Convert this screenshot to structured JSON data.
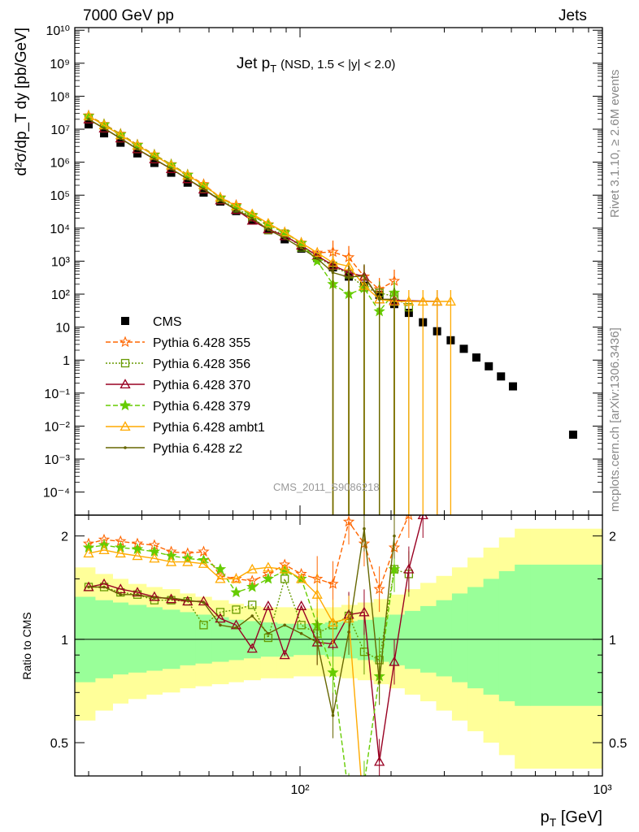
{
  "header": {
    "left": "7000 GeV pp",
    "right": "Jets",
    "rivet": "Rivet 3.1.10, ≥ 2.6M events",
    "mcplots": "mcplots.cern.ch [arXiv:1306.3436]"
  },
  "chart_data": [
    {
      "type": "scatter",
      "title_main": "Jet p",
      "title_sub": "T",
      "title_cut": "(NSD, 1.5 < |y| < 2.0)",
      "analysis_id": "CMS_2011_S9086218",
      "ylabel": "d²σ/dp_T dy [pb/GeV]",
      "xscale": "log",
      "yscale": "log",
      "xlim": [
        18,
        1000
      ],
      "ylim": [
        2e-05,
        12000000000
      ],
      "y_tick_labels": [
        "10⁻⁴",
        "10⁻³",
        "10⁻²",
        "10⁻¹",
        "1",
        "10",
        "10²",
        "10³",
        "10⁴",
        "10⁵",
        "10⁶",
        "10⁷",
        "10⁸",
        "10⁹",
        "10¹⁰"
      ],
      "legend_position": "middle-left",
      "series": [
        {
          "name": "CMS",
          "color": "#000000",
          "marker": "square",
          "x": [
            20,
            22.5,
            25.5,
            29,
            33,
            37.5,
            42.5,
            48,
            54.5,
            61.5,
            69.5,
            78.5,
            89,
            101,
            114,
            128.5,
            145,
            163,
            183,
            205,
            229,
            255,
            284,
            315,
            348,
            383,
            421,
            462,
            506,
            800
          ],
          "y": [
            14000000,
            7500000,
            3900000,
            1850000,
            950000,
            480000,
            240000,
            120000,
            64000,
            33000,
            17000,
            8700,
            4600,
            2400,
            1250,
            650,
            340,
            180,
            95,
            50,
            27,
            14,
            7.5,
            4,
            2.2,
            1.2,
            0.65,
            0.32,
            0.16,
            0.0055
          ]
        },
        {
          "name": "Pythia 6.428 355",
          "color": "#ff6600",
          "marker": "star",
          "dash": "dashed",
          "x": [
            20,
            22.5,
            25.5,
            29,
            33,
            37.5,
            42.5,
            48,
            54.5,
            61.5,
            69.5,
            78.5,
            89,
            101,
            114,
            128.5,
            145,
            163,
            183,
            205
          ],
          "y": [
            26000000,
            14200000,
            7200000,
            3400000,
            1700000,
            860000,
            420000,
            215000,
            85000,
            50000,
            25000,
            13000,
            7500,
            3600,
            1800,
            1900,
            1300,
            340,
            140,
            250
          ]
        },
        {
          "name": "Pythia 6.428 356",
          "color": "#669900",
          "marker": "open-square",
          "dash": "dotted",
          "x": [
            20,
            22.5,
            25.5,
            29,
            33,
            37.5,
            42.5,
            48,
            54.5,
            61.5,
            69.5,
            78.5,
            89,
            101,
            114,
            128.5,
            145,
            163,
            183,
            205,
            229
          ],
          "y": [
            20000000,
            10600000,
            5300000,
            2500000,
            1230000,
            625000,
            310000,
            155000,
            72000,
            40000,
            21500,
            8800,
            6800,
            2600,
            1300,
            720,
            400,
            160,
            110,
            85,
            40
          ]
        },
        {
          "name": "Pythia 6.428 370",
          "color": "#990022",
          "marker": "open-triangle",
          "dash": "solid",
          "x": [
            20,
            22.5,
            25.5,
            29,
            33,
            37.5,
            42.5,
            48,
            54.5,
            61.5,
            69.5,
            78.5,
            89,
            101,
            114,
            128.5,
            145,
            163,
            183,
            205,
            284
          ],
          "y": [
            20000000,
            10600000,
            5300000,
            2500000,
            1230000,
            625000,
            310000,
            150000,
            70000,
            36000,
            17000,
            9300,
            5800,
            3000,
            1450,
            750,
            450,
            340,
            70,
            65,
            60
          ]
        },
        {
          "name": "Pythia 6.428 379",
          "color": "#66cc00",
          "marker": "star",
          "dash": "dashed",
          "x": [
            20,
            22.5,
            25.5,
            29,
            33,
            37.5,
            42.5,
            48,
            54.5,
            61.5,
            69.5,
            78.5,
            89,
            101,
            114,
            128.5,
            145,
            163,
            183,
            205
          ],
          "y": [
            25000000,
            13800000,
            6900000,
            3300000,
            1650000,
            840000,
            410000,
            200000,
            82000,
            46000,
            24000,
            12500,
            7300,
            3500,
            1000,
            200,
            100,
            150,
            30,
            110
          ]
        },
        {
          "name": "Pythia 6.428 ambt1",
          "color": "#ffaa00",
          "marker": "open-triangle",
          "dash": "solid",
          "x": [
            20,
            22.5,
            25.5,
            29,
            33,
            37.5,
            42.5,
            48,
            54.5,
            61.5,
            69.5,
            78.5,
            89,
            101,
            114,
            128.5,
            145,
            163,
            183,
            205,
            229,
            255,
            284,
            315
          ],
          "y": [
            25000000,
            13200000,
            6600000,
            3200000,
            1600000,
            800000,
            400000,
            205000,
            85000,
            47000,
            27000,
            14000,
            7500,
            3600,
            1800,
            900,
            700,
            180,
            70,
            60,
            60,
            60,
            60,
            60
          ]
        },
        {
          "name": "Pythia 6.428 z2",
          "color": "#666600",
          "marker": "dot",
          "dash": "solid",
          "x": [
            20,
            22.5,
            25.5,
            29,
            33,
            37.5,
            42.5,
            48,
            54.5,
            61.5,
            69.5,
            78.5,
            89,
            101,
            114,
            128.5,
            145,
            163,
            183,
            205
          ],
          "y": [
            20000000,
            10600000,
            5200000,
            2500000,
            1250000,
            630000,
            310000,
            155000,
            70000,
            36000,
            20000,
            9000,
            5000,
            2500,
            1200,
            450,
            330,
            360,
            70,
            70
          ]
        }
      ]
    },
    {
      "type": "line",
      "ylabel": "Ratio to CMS",
      "xlabel_main": "p",
      "xlabel_sub": "T",
      "xlabel_unit": "[GeV]",
      "xscale": "log",
      "yscale": "log",
      "xlim": [
        18,
        1000
      ],
      "ylim": [
        0.4,
        2.3
      ],
      "y_tick_labels": [
        "0.5",
        "1",
        "2"
      ],
      "x_tick_labels": [
        "10²",
        "10³"
      ],
      "uncertainty_bands": {
        "colors": {
          "total": "#ffff99",
          "stat": "#99ff99"
        },
        "edges": [
          18,
          21,
          24,
          27,
          31,
          35,
          40,
          45,
          51,
          58,
          65,
          74,
          84,
          95,
          107,
          121,
          137,
          155,
          175,
          197,
          222,
          250,
          282,
          318,
          358,
          404,
          455,
          513,
          578,
          1000
        ],
        "total_up": [
          1.62,
          1.55,
          1.5,
          1.45,
          1.42,
          1.4,
          1.36,
          1.33,
          1.3,
          1.27,
          1.25,
          1.24,
          1.24,
          1.23,
          1.23,
          1.24,
          1.26,
          1.28,
          1.31,
          1.35,
          1.4,
          1.46,
          1.53,
          1.62,
          1.73,
          1.85,
          1.98,
          2.1,
          2.1
        ],
        "total_down": [
          0.58,
          0.62,
          0.65,
          0.67,
          0.69,
          0.7,
          0.72,
          0.73,
          0.74,
          0.75,
          0.76,
          0.77,
          0.77,
          0.78,
          0.78,
          0.78,
          0.77,
          0.76,
          0.74,
          0.72,
          0.69,
          0.66,
          0.62,
          0.58,
          0.54,
          0.5,
          0.46,
          0.42,
          0.42
        ],
        "stat_up": [
          1.33,
          1.3,
          1.28,
          1.26,
          1.24,
          1.22,
          1.2,
          1.18,
          1.16,
          1.14,
          1.13,
          1.12,
          1.11,
          1.11,
          1.11,
          1.12,
          1.13,
          1.14,
          1.16,
          1.18,
          1.21,
          1.25,
          1.3,
          1.36,
          1.42,
          1.5,
          1.58,
          1.65,
          1.65
        ],
        "stat_down": [
          0.75,
          0.77,
          0.79,
          0.8,
          0.81,
          0.82,
          0.84,
          0.85,
          0.86,
          0.87,
          0.88,
          0.89,
          0.89,
          0.9,
          0.9,
          0.89,
          0.88,
          0.87,
          0.86,
          0.84,
          0.82,
          0.8,
          0.78,
          0.75,
          0.72,
          0.69,
          0.66,
          0.64,
          0.64
        ]
      },
      "series": [
        {
          "name": "Pythia 6.428 355",
          "color": "#ff6600",
          "x": [
            20,
            22.5,
            25.5,
            29,
            33,
            37.5,
            42.5,
            48,
            54.5,
            61.5,
            69.5,
            78.5,
            89,
            101,
            114,
            128.5,
            145,
            163,
            183,
            205,
            229
          ],
          "y": [
            1.9,
            1.95,
            1.93,
            1.9,
            1.88,
            1.8,
            1.78,
            1.8,
            1.53,
            1.5,
            1.48,
            1.55,
            1.65,
            1.55,
            1.5,
            1.45,
            2.2,
            1.9,
            1.4,
            1.85,
            2.3
          ]
        },
        {
          "name": "Pythia 6.428 356",
          "color": "#669900",
          "x": [
            20,
            22.5,
            25.5,
            29,
            33,
            37.5,
            42.5,
            48,
            54.5,
            61.5,
            69.5,
            78.5,
            89,
            101,
            114,
            128.5,
            145,
            163,
            183,
            205,
            229
          ],
          "y": [
            1.42,
            1.42,
            1.37,
            1.35,
            1.3,
            1.3,
            1.29,
            1.1,
            1.2,
            1.22,
            1.26,
            1.01,
            1.5,
            1.1,
            1.04,
            1.1,
            1.17,
            0.92,
            0.87,
            1.6,
            1.55
          ]
        },
        {
          "name": "Pythia 6.428 370",
          "color": "#990022",
          "x": [
            20,
            22.5,
            25.5,
            29,
            33,
            37.5,
            42.5,
            48,
            54.5,
            61.5,
            69.5,
            78.5,
            89,
            101,
            114,
            128.5,
            145,
            163,
            183,
            205,
            229,
            255
          ],
          "y": [
            1.42,
            1.45,
            1.4,
            1.37,
            1.33,
            1.31,
            1.29,
            1.29,
            1.15,
            1.1,
            0.94,
            1.25,
            0.9,
            1.25,
            0.98,
            0.97,
            1.18,
            1.2,
            0.44,
            0.86,
            1.6,
            2.3
          ]
        },
        {
          "name": "Pythia 6.428 379",
          "color": "#66cc00",
          "x": [
            20,
            22.5,
            25.5,
            29,
            33,
            37.5,
            42.5,
            48,
            54.5,
            61.5,
            69.5,
            78.5,
            89,
            101,
            114,
            128.5,
            145,
            163,
            183,
            205
          ],
          "y": [
            1.85,
            1.88,
            1.85,
            1.83,
            1.8,
            1.75,
            1.72,
            1.7,
            1.6,
            1.37,
            1.42,
            1.5,
            1.58,
            1.5,
            1.1,
            0.8,
            0.35,
            0.38,
            0.78,
            1.6
          ]
        },
        {
          "name": "Pythia 6.428 ambt1",
          "color": "#ffaa00",
          "x": [
            20,
            22.5,
            25.5,
            29,
            33,
            37.5,
            42.5,
            48,
            54.5,
            61.5,
            69.5,
            78.5,
            89,
            101,
            114,
            128.5,
            145,
            163
          ],
          "y": [
            1.78,
            1.82,
            1.78,
            1.75,
            1.72,
            1.68,
            1.68,
            1.66,
            1.5,
            1.5,
            1.6,
            1.62,
            1.6,
            1.5,
            1.35,
            1.12,
            1.15,
            0.3
          ]
        },
        {
          "name": "Pythia 6.428 z2",
          "color": "#666600",
          "x": [
            20,
            22.5,
            25.5,
            29,
            33,
            37.5,
            42.5,
            48,
            54.5,
            61.5,
            69.5,
            78.5,
            89,
            101,
            114,
            128.5,
            145,
            163,
            183,
            205
          ],
          "y": [
            1.42,
            1.42,
            1.35,
            1.35,
            1.32,
            1.32,
            1.3,
            1.28,
            1.1,
            1.08,
            1.17,
            1.04,
            1.1,
            1.04,
            0.98,
            0.6,
            1.05,
            2.1,
            0.75,
            2.0
          ]
        }
      ]
    }
  ]
}
